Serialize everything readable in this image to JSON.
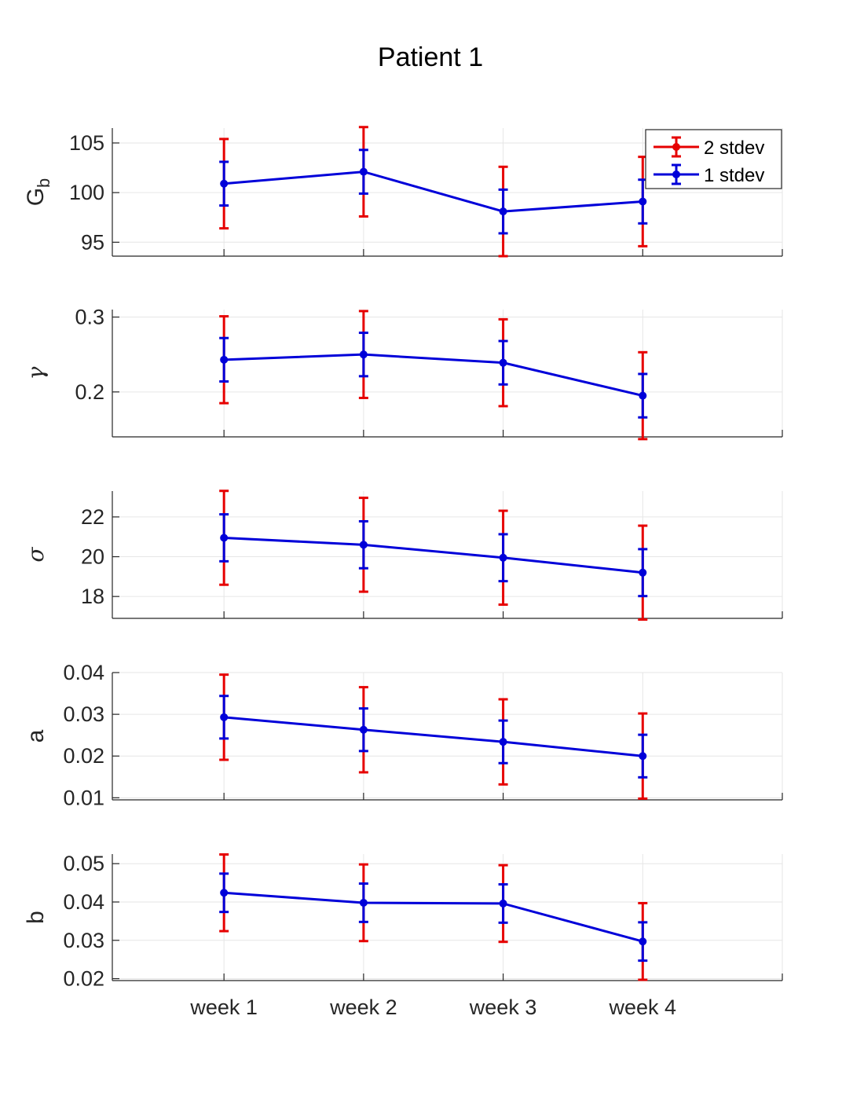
{
  "chart_data": {
    "type": "line",
    "title": "Patient 1",
    "categories": [
      "week 1",
      "week 2",
      "week 3",
      "week 4"
    ],
    "xlim": [
      0.2,
      5
    ],
    "legend": {
      "position": "top-right",
      "entries": [
        {
          "name": "2 stdev",
          "color": "#e60000"
        },
        {
          "name": "1 stdev",
          "color": "#0000d9"
        }
      ]
    },
    "subplots": [
      {
        "key": "Gb",
        "ylabel": "G",
        "ylabel_sub": "b",
        "ylabel_style": "plain",
        "ylim": [
          93.6,
          106.5
        ],
        "yticks": [
          "95",
          "100",
          "105"
        ],
        "ytick_values": [
          95,
          100,
          105
        ],
        "values": [
          100.9,
          102.1,
          98.1,
          99.1
        ],
        "err_1std": [
          2.2,
          2.2,
          2.2,
          2.2
        ],
        "err_2std": [
          4.5,
          4.5,
          4.5,
          4.5
        ],
        "show_legend": true
      },
      {
        "key": "gamma",
        "ylabel": "γ",
        "ylabel_style": "greek",
        "ylim": [
          0.14,
          0.31
        ],
        "yticks": [
          "0.2",
          "0.3"
        ],
        "ytick_values": [
          0.2,
          0.3
        ],
        "values": [
          0.243,
          0.25,
          0.239,
          0.195
        ],
        "err_1std": [
          0.029,
          0.029,
          0.029,
          0.029
        ],
        "err_2std": [
          0.058,
          0.058,
          0.058,
          0.058
        ],
        "show_legend": false
      },
      {
        "key": "sigma",
        "ylabel": "σ",
        "ylabel_style": "greek",
        "ylim": [
          16.9,
          23.3
        ],
        "yticks": [
          "18",
          "20",
          "22"
        ],
        "ytick_values": [
          18,
          20,
          22
        ],
        "values": [
          20.95,
          20.6,
          19.95,
          19.2
        ],
        "err_1std": [
          1.18,
          1.18,
          1.18,
          1.18
        ],
        "err_2std": [
          2.36,
          2.36,
          2.36,
          2.36
        ],
        "show_legend": false
      },
      {
        "key": "a",
        "ylabel": "a",
        "ylabel_style": "plain",
        "ylim": [
          0.0095,
          0.04
        ],
        "yticks": [
          "0.01",
          "0.02",
          "0.03",
          "0.04"
        ],
        "ytick_values": [
          0.01,
          0.02,
          0.03,
          0.04
        ],
        "values": [
          0.0293,
          0.0263,
          0.0234,
          0.02
        ],
        "err_1std": [
          0.0051,
          0.0051,
          0.0051,
          0.0051
        ],
        "err_2std": [
          0.0102,
          0.0102,
          0.0102,
          0.0102
        ],
        "show_legend": false
      },
      {
        "key": "b",
        "ylabel": "b",
        "ylabel_style": "plain",
        "ylim": [
          0.0195,
          0.0525
        ],
        "yticks": [
          "0.02",
          "0.03",
          "0.04",
          "0.05"
        ],
        "ytick_values": [
          0.02,
          0.03,
          0.04,
          0.05
        ],
        "values": [
          0.0424,
          0.0398,
          0.0396,
          0.0297
        ],
        "err_1std": [
          0.005,
          0.005,
          0.005,
          0.005
        ],
        "err_2std": [
          0.01,
          0.01,
          0.01,
          0.01
        ],
        "show_legend": false
      }
    ]
  }
}
